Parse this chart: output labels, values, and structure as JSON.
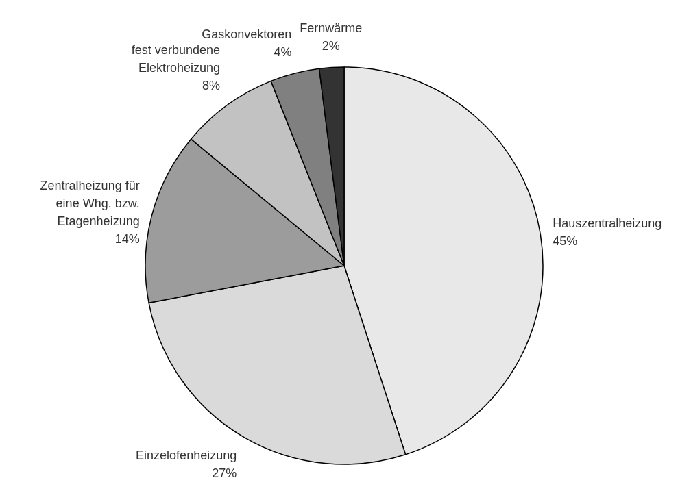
{
  "chart_data": {
    "type": "pie",
    "categories": [
      "Hauszentralheizung",
      "Einzelofenheizung",
      "Zentralheizung für eine Whg. bzw. Etagenheizung",
      "fest verbundene Elektroheizung",
      "Gaskonvektoren",
      "Fernwärme"
    ],
    "values": [
      45,
      27,
      14,
      8,
      4,
      2
    ],
    "value_labels": [
      "45%",
      "27%",
      "14%",
      "8%",
      "4%",
      "2%"
    ],
    "colors": [
      "#e8e8e8",
      "#dadada",
      "#9c9c9c",
      "#c2c2c2",
      "#808080",
      "#333333"
    ],
    "legend": false
  }
}
